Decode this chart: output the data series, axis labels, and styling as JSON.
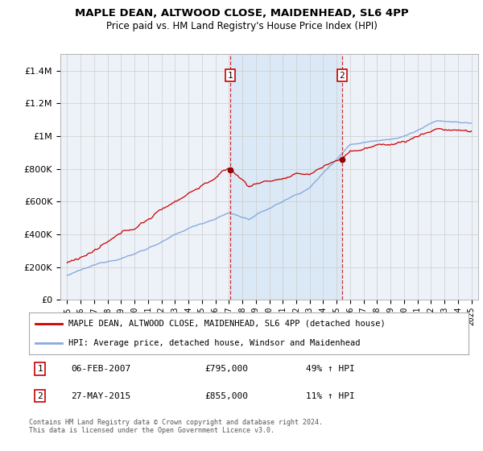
{
  "title": "MAPLE DEAN, ALTWOOD CLOSE, MAIDENHEAD, SL6 4PP",
  "subtitle": "Price paid vs. HM Land Registry's House Price Index (HPI)",
  "legend_line1": "MAPLE DEAN, ALTWOOD CLOSE, MAIDENHEAD, SL6 4PP (detached house)",
  "legend_line2": "HPI: Average price, detached house, Windsor and Maidenhead",
  "sale1_date": "06-FEB-2007",
  "sale1_price": "£795,000",
  "sale1_hpi": "49% ↑ HPI",
  "sale2_date": "27-MAY-2015",
  "sale2_price": "£855,000",
  "sale2_hpi": "11% ↑ HPI",
  "footnote": "Contains HM Land Registry data © Crown copyright and database right 2024.\nThis data is licensed under the Open Government Licence v3.0.",
  "sale1_x": 2007.09,
  "sale2_x": 2015.4,
  "sale1_y": 795000,
  "sale2_y": 855000,
  "ylim": [
    0,
    1500000
  ],
  "xlim": [
    1994.5,
    2025.5
  ],
  "background_color": "#edf2f9",
  "line_color_red": "#cc0000",
  "line_color_blue": "#88aadd",
  "grid_color": "#cccccc",
  "span_color": "#d0e4f5"
}
